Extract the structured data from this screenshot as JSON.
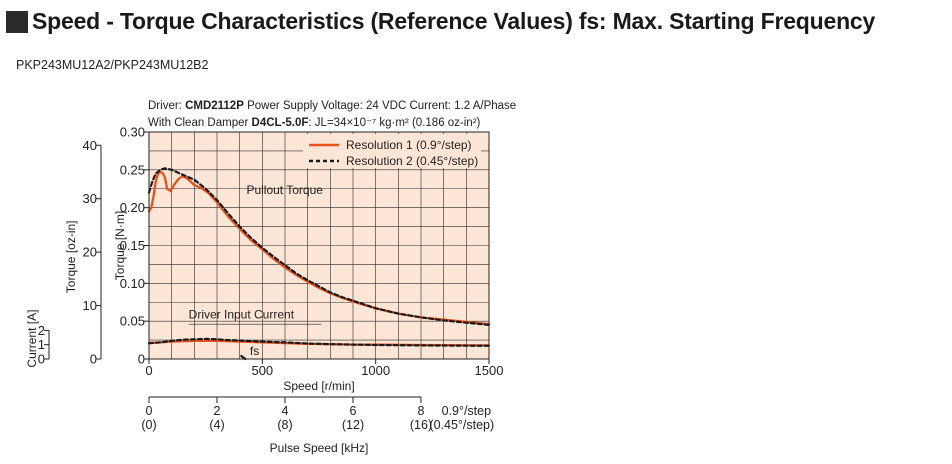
{
  "header": {
    "title": "Speed - Torque Characteristics (Reference Values) fs: Max. Starting Frequency",
    "model": "PKP243MU12A2/PKP243MU12B2"
  },
  "conditions": {
    "driver_label": "Driver: ",
    "driver_model": "CMD2112P",
    "supply": " Power Supply Voltage: 24 VDC  Current: 1.2 A/Phase",
    "damper_prefix": "With Clean Damper ",
    "damper_model": "D4CL-5.0F",
    "inertia": ": JL=34×10⁻⁷ kg·m² (0.186 oz-in²)"
  },
  "colors": {
    "background": "#fde6d5",
    "grid": "#2a2a2a",
    "resolution1": "#e8501e",
    "resolution2": "#1a1a1a"
  },
  "chart_data": {
    "type": "line",
    "xlabel": "Speed [r/min]",
    "xlim": [
      0,
      1500
    ],
    "x_ticks": [
      0,
      500,
      1000,
      1500
    ],
    "ylabel": "Torque [N·m]",
    "ylim": [
      0,
      0.3
    ],
    "y_ticks": [
      0,
      0.05,
      0.1,
      0.15,
      0.2,
      0.25,
      0.3
    ],
    "y_tick_labels": [
      "0",
      "0.05",
      "0.10",
      "0.15",
      "0.20",
      "0.25",
      "0.30"
    ],
    "ylabel_ozin": "Torque [oz-in]",
    "ozin_ticks": [
      0,
      10,
      20,
      30,
      40
    ],
    "ylabel_current": "Current [A]",
    "current_ticks": [
      0,
      1,
      2
    ],
    "pulse_label": "Pulse Speed [kHz]",
    "pulse_ticks_x": [
      0,
      300,
      600,
      900,
      1200
    ],
    "pulse_res1": [
      "0",
      "2",
      "4",
      "6",
      "8"
    ],
    "pulse_res2": [
      "(0)",
      "(4)",
      "(8)",
      "(12)",
      "(16)"
    ],
    "pulse_note1": "0.9°/step",
    "pulse_note2": "(0.45°/step)",
    "legend": [
      "Resolution 1 (0.9°/step)",
      "Resolution 2 (0.45°/step)"
    ],
    "legend_position": "top-right",
    "annotations": [
      "Pullout Torque",
      "Driver Input Current",
      "fs"
    ],
    "series": [
      {
        "name": "Resolution 1 (0.9°/step)",
        "group": "torque",
        "x": [
          0,
          10,
          20,
          30,
          40,
          50,
          60,
          70,
          80,
          95,
          110,
          130,
          150,
          170,
          200,
          230,
          260,
          300,
          350,
          400,
          450,
          500,
          550,
          600,
          650,
          700,
          750,
          800,
          850,
          900,
          1000,
          1100,
          1200,
          1300,
          1400,
          1500
        ],
        "y": [
          0.195,
          0.2,
          0.215,
          0.235,
          0.245,
          0.247,
          0.246,
          0.24,
          0.225,
          0.222,
          0.23,
          0.238,
          0.242,
          0.238,
          0.23,
          0.226,
          0.22,
          0.207,
          0.188,
          0.172,
          0.157,
          0.145,
          0.132,
          0.121,
          0.111,
          0.102,
          0.094,
          0.087,
          0.081,
          0.076,
          0.067,
          0.06,
          0.055,
          0.052,
          0.049,
          0.046
        ]
      },
      {
        "name": "Resolution 2 (0.45°/step)",
        "group": "torque",
        "x": [
          0,
          15,
          30,
          50,
          70,
          100,
          130,
          160,
          200,
          250,
          300,
          350,
          400,
          450,
          500,
          550,
          600,
          650,
          700,
          750,
          800,
          850,
          900,
          1000,
          1100,
          1200,
          1300,
          1400,
          1500
        ],
        "y": [
          0.22,
          0.235,
          0.245,
          0.25,
          0.252,
          0.25,
          0.246,
          0.242,
          0.237,
          0.225,
          0.21,
          0.192,
          0.175,
          0.16,
          0.147,
          0.135,
          0.124,
          0.113,
          0.104,
          0.096,
          0.088,
          0.082,
          0.077,
          0.067,
          0.06,
          0.055,
          0.051,
          0.048,
          0.045
        ]
      },
      {
        "name": "Resolution 1 (0.9°/step)",
        "group": "current",
        "x": [
          0,
          50,
          100,
          150,
          200,
          250,
          300,
          350,
          400,
          500,
          600,
          700,
          800,
          900,
          1000,
          1200,
          1500
        ],
        "y": [
          0.021,
          0.022,
          0.023,
          0.0235,
          0.024,
          0.024,
          0.024,
          0.0235,
          0.023,
          0.022,
          0.021,
          0.02,
          0.0195,
          0.019,
          0.019,
          0.0185,
          0.018
        ]
      },
      {
        "name": "Resolution 2 (0.45°/step)",
        "group": "current",
        "x": [
          0,
          50,
          100,
          150,
          200,
          250,
          300,
          350,
          400,
          500,
          600,
          700,
          800,
          900,
          1000,
          1200,
          1500
        ],
        "y": [
          0.021,
          0.022,
          0.024,
          0.0255,
          0.026,
          0.0265,
          0.026,
          0.025,
          0.0245,
          0.023,
          0.022,
          0.0205,
          0.0195,
          0.019,
          0.0185,
          0.018,
          0.0175
        ]
      },
      {
        "name": "fs",
        "group": "fs",
        "x": [
          407,
          425
        ],
        "y": [
          0.004,
          0.0
        ]
      }
    ]
  }
}
